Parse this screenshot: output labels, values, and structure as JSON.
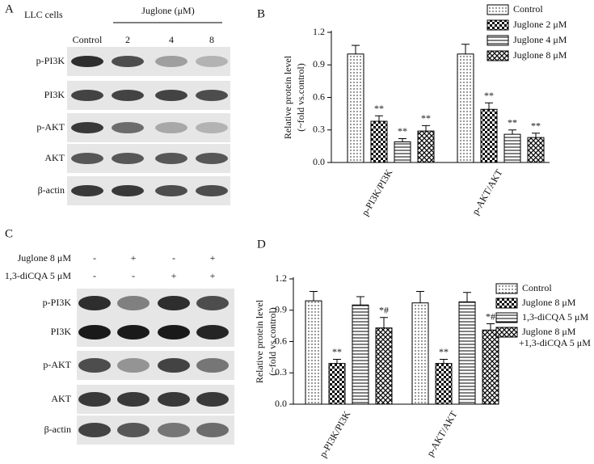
{
  "panel_a": {
    "label": "A",
    "cell_line": "LLC cells",
    "treatment": "Juglone (μM)",
    "columns": [
      "Control",
      "2",
      "4",
      "8"
    ],
    "rows": [
      "p-PI3K",
      "PI3K",
      "p-AKT",
      "AKT",
      "β-actin"
    ]
  },
  "panel_c": {
    "label": "C",
    "treatments": [
      {
        "name": "Juglone 8 μM",
        "signs": [
          "-",
          "+",
          "-",
          "+"
        ]
      },
      {
        "name": "1,3-diCQA 5 μM",
        "signs": [
          "-",
          "-",
          "+",
          "+"
        ]
      }
    ],
    "rows": [
      "p-PI3K",
      "PI3K",
      "p-AKT",
      "AKT",
      "β-actin"
    ]
  },
  "chart_data": [
    {
      "type": "bar",
      "label": "B",
      "ylabel": [
        "Relative protein level",
        "(~fold vs.control)"
      ],
      "categories": [
        "p-PI3K/PI3K",
        "p-AKT/AKT"
      ],
      "ylim": [
        0,
        1.2
      ],
      "yticks": [
        {
          "value": 0,
          "label": "0.0"
        },
        0.3,
        0.6,
        0.9,
        1.2
      ],
      "legend": "top-right",
      "series": [
        {
          "name": "Control",
          "color": "#000000",
          "pattern": "dots",
          "values": [
            1.0,
            1.0
          ],
          "errors": [
            0.08,
            0.09
          ],
          "annotations": [
            null,
            null
          ]
        },
        {
          "name": "Juglone 2 μM",
          "color": "#000000",
          "pattern": "checker",
          "values": [
            0.38,
            0.49
          ],
          "errors": [
            0.05,
            0.06
          ],
          "annotations": [
            "**",
            "**"
          ]
        },
        {
          "name": "Juglone 4 μM",
          "color": "#000000",
          "pattern": "hlines",
          "values": [
            0.19,
            0.26
          ],
          "errors": [
            0.03,
            0.04
          ],
          "annotations": [
            "**",
            "**"
          ]
        },
        {
          "name": "Juglone 8 μM",
          "color": "#000000",
          "pattern": "crosshatch",
          "values": [
            0.29,
            0.23
          ],
          "errors": [
            0.05,
            0.04
          ],
          "annotations": [
            "**",
            "**"
          ]
        }
      ]
    },
    {
      "type": "bar",
      "label": "D",
      "ylabel": [
        "Relative protein level",
        "(~fold vs.control)"
      ],
      "categories": [
        "p-PI3K/PI3K",
        "p-AKT/AKT"
      ],
      "ylim": [
        0,
        1.2
      ],
      "yticks": [
        {
          "value": 0,
          "label": "0.0"
        },
        0.3,
        0.6,
        0.9,
        1.2
      ],
      "legend": "right",
      "series": [
        {
          "name": [
            "Control"
          ],
          "color": "#000000",
          "pattern": "dots",
          "values": [
            0.99,
            0.97
          ],
          "errors": [
            0.09,
            0.11
          ],
          "annotations": [
            null,
            null
          ]
        },
        {
          "name": [
            "Juglone 8 μM"
          ],
          "color": "#000000",
          "pattern": "checker",
          "values": [
            0.39,
            0.39
          ],
          "errors": [
            0.04,
            0.04
          ],
          "annotations": [
            "**",
            "**"
          ]
        },
        {
          "name": [
            "1,3-diCQA 5 μM"
          ],
          "color": "#000000",
          "pattern": "hlines",
          "values": [
            0.95,
            0.98
          ],
          "errors": [
            0.08,
            0.09
          ],
          "annotations": [
            null,
            null
          ]
        },
        {
          "name": [
            "Juglone 8 μM",
            "+1,3-diCQA 5 μM"
          ],
          "color": "#000000",
          "pattern": "crosshatch",
          "values": [
            0.73,
            0.71
          ],
          "errors": [
            0.1,
            0.06
          ],
          "annotations": [
            "*#",
            "*#"
          ]
        }
      ]
    }
  ]
}
